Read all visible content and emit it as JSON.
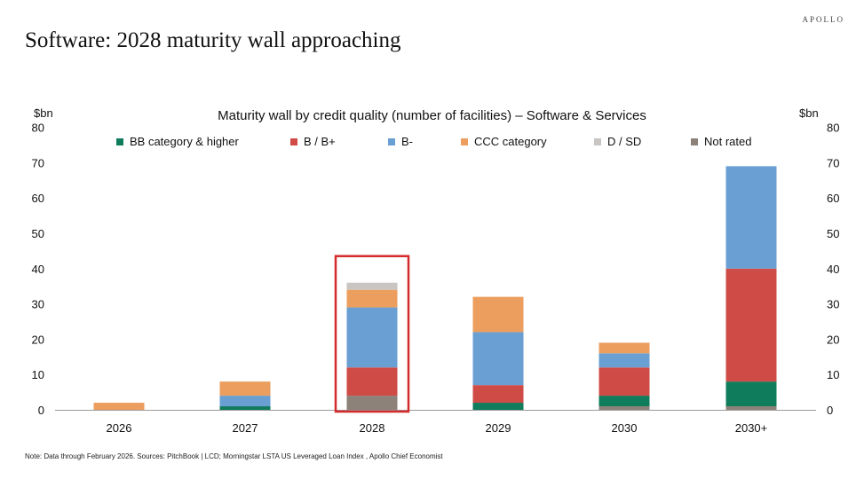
{
  "brand": "APOLLO",
  "headline": "Software: 2028 maturity wall approaching",
  "footnote": "Note: Data through February 2026. Sources: PitchBook | LCD; Morningstar LSTA US Leveraged Loan Index , Apollo Chief Economist",
  "chart_data": {
    "type": "bar",
    "stacked": true,
    "title": "Maturity wall by credit quality (number of facilities) – Software & Services",
    "ylabel_left": "$bn",
    "ylabel_right": "$bn",
    "ylim": [
      0,
      80
    ],
    "yticks": [
      0,
      10,
      20,
      30,
      40,
      50,
      60,
      70,
      80
    ],
    "categories": [
      "2026",
      "2027",
      "2028",
      "2029",
      "2030",
      "2030+"
    ],
    "series": [
      {
        "name": "Not rated",
        "color": "#8c8279",
        "values": [
          0,
          0,
          4,
          0,
          1,
          1
        ]
      },
      {
        "name": "BB category & higher",
        "color": "#0f7c5c",
        "values": [
          0,
          1,
          0,
          2,
          3,
          7
        ]
      },
      {
        "name": "B / B+",
        "color": "#cf4b45",
        "values": [
          0,
          0,
          8,
          5,
          8,
          32
        ]
      },
      {
        "name": "B-",
        "color": "#6a9fd4",
        "values": [
          0,
          3,
          17,
          15,
          4,
          29
        ]
      },
      {
        "name": "CCC category",
        "color": "#eb9e5e",
        "values": [
          2,
          4,
          5,
          10,
          3,
          0
        ]
      },
      {
        "name": "D / SD",
        "color": "#c8c5c2",
        "values": [
          0,
          0,
          2,
          0,
          0,
          0
        ]
      }
    ],
    "legend_order": [
      "BB category & higher",
      "B / B+",
      "B-",
      "CCC category",
      "D / SD",
      "Not rated"
    ],
    "legend_position": "top",
    "highlight_category": "2028",
    "highlight_color": "#d42a2a",
    "grid": false
  }
}
